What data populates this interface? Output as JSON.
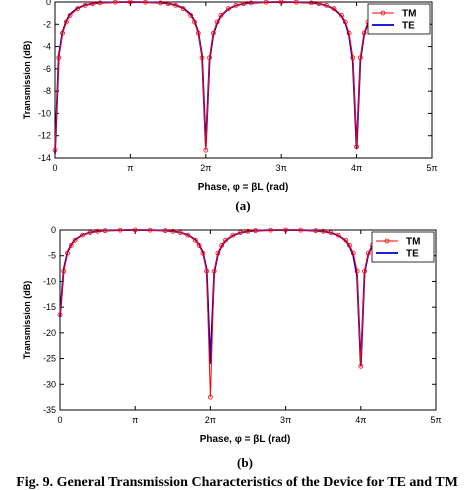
{
  "figure": {
    "caption": "Fig. 9. General Transmission Characteristics of the Device for TE and TM"
  },
  "chart_data": [
    {
      "type": "line",
      "panel_label": "(a)",
      "xlabel": "Phase, φ = βL (rad)",
      "ylabel": "Transmission (dB)",
      "xlim": [
        0,
        5
      ],
      "x_unit": "π",
      "ylim": [
        -14,
        0
      ],
      "x_ticks": [
        0,
        1,
        2,
        3,
        4,
        5
      ],
      "x_tick_labels": [
        "0",
        "π",
        "2π",
        "3π",
        "4π",
        "5π"
      ],
      "y_ticks": [
        0,
        -2,
        -4,
        -6,
        -8,
        -10,
        -12,
        -14
      ],
      "y_tick_labels": [
        "0",
        "-2",
        "-4",
        "-6",
        "-8",
        "-10",
        "-12",
        "-14"
      ],
      "grid": false,
      "legend_position": "top-right",
      "x": [
        0.0,
        0.05,
        0.1,
        0.15,
        0.2,
        0.3,
        0.4,
        0.5,
        0.6,
        0.8,
        1.0,
        1.2,
        1.4,
        1.5,
        1.6,
        1.7,
        1.8,
        1.85,
        1.9,
        1.95,
        2.0,
        2.05,
        2.1,
        2.15,
        2.2,
        2.3,
        2.4,
        2.5,
        2.6,
        2.8,
        3.0,
        3.2,
        3.4,
        3.5,
        3.6,
        3.7,
        3.8,
        3.85,
        3.9,
        3.95,
        4.0,
        4.05,
        4.1,
        4.15,
        4.2,
        4.25,
        4.3
      ],
      "series": [
        {
          "name": "TM",
          "color": "#ff0000",
          "marker": "circle",
          "values": [
            -13.3,
            -5.0,
            -2.8,
            -1.8,
            -1.2,
            -0.6,
            -0.3,
            -0.15,
            -0.08,
            -0.02,
            0.0,
            -0.02,
            -0.08,
            -0.15,
            -0.3,
            -0.6,
            -1.2,
            -1.8,
            -2.8,
            -5.0,
            -13.3,
            -5.0,
            -2.8,
            -1.8,
            -1.2,
            -0.6,
            -0.3,
            -0.15,
            -0.08,
            -0.02,
            0.0,
            -0.02,
            -0.08,
            -0.15,
            -0.3,
            -0.6,
            -1.2,
            -1.8,
            -2.8,
            -5.0,
            -13.0,
            -5.0,
            -2.8,
            -1.8,
            -1.2,
            -0.8,
            -0.6
          ]
        },
        {
          "name": "TE",
          "color": "#0000cc",
          "marker": "none",
          "values": [
            -13.6,
            -4.8,
            -2.7,
            -1.7,
            -1.1,
            -0.55,
            -0.28,
            -0.14,
            -0.07,
            -0.02,
            0.0,
            -0.02,
            -0.07,
            -0.14,
            -0.28,
            -0.55,
            -1.1,
            -1.7,
            -2.7,
            -4.8,
            -13.0,
            -5.2,
            -2.9,
            -1.9,
            -1.25,
            -0.62,
            -0.31,
            -0.15,
            -0.08,
            -0.02,
            0.0,
            -0.02,
            -0.08,
            -0.15,
            -0.31,
            -0.62,
            -1.25,
            -1.9,
            -3.0,
            -5.4,
            -13.2,
            -5.2,
            -2.9,
            -1.9,
            -1.25,
            -0.85,
            -0.62
          ]
        }
      ]
    },
    {
      "type": "line",
      "panel_label": "(b)",
      "xlabel": "Phase, φ = βL (rad)",
      "ylabel": "Transmission (dB)",
      "xlim": [
        0,
        5
      ],
      "x_unit": "π",
      "ylim": [
        -35,
        0
      ],
      "x_ticks": [
        0,
        1,
        2,
        3,
        4,
        5
      ],
      "x_tick_labels": [
        "0",
        "π",
        "2π",
        "3π",
        "4π",
        "5π"
      ],
      "y_ticks": [
        0,
        -5,
        -10,
        -15,
        -20,
        -25,
        -30,
        -35
      ],
      "y_tick_labels": [
        "0",
        "-5",
        "-10",
        "-15",
        "-20",
        "-25",
        "-30",
        "-35"
      ],
      "grid": false,
      "legend_position": "top-right",
      "x": [
        0.0,
        0.05,
        0.1,
        0.15,
        0.2,
        0.3,
        0.4,
        0.5,
        0.6,
        0.8,
        1.0,
        1.2,
        1.4,
        1.5,
        1.6,
        1.7,
        1.8,
        1.85,
        1.9,
        1.95,
        2.0,
        2.05,
        2.1,
        2.15,
        2.2,
        2.3,
        2.4,
        2.5,
        2.6,
        2.8,
        3.0,
        3.2,
        3.4,
        3.5,
        3.6,
        3.7,
        3.8,
        3.85,
        3.9,
        3.95,
        4.0,
        4.05,
        4.1,
        4.15,
        4.2,
        4.25,
        4.3
      ],
      "series": [
        {
          "name": "TM",
          "color": "#ff0000",
          "marker": "circle",
          "values": [
            -16.5,
            -8.0,
            -4.5,
            -3.0,
            -2.0,
            -1.0,
            -0.5,
            -0.25,
            -0.12,
            -0.03,
            0.0,
            -0.03,
            -0.12,
            -0.25,
            -0.5,
            -1.0,
            -2.0,
            -3.0,
            -4.5,
            -8.0,
            -32.5,
            -8.0,
            -4.5,
            -3.0,
            -2.0,
            -1.0,
            -0.5,
            -0.25,
            -0.12,
            -0.03,
            0.0,
            -0.03,
            -0.12,
            -0.25,
            -0.5,
            -1.0,
            -2.0,
            -3.0,
            -4.5,
            -8.0,
            -26.5,
            -8.0,
            -4.5,
            -3.0,
            -2.0,
            -1.5,
            -1.0
          ]
        },
        {
          "name": "TE",
          "color": "#0000cc",
          "marker": "none",
          "values": [
            -16.8,
            -7.6,
            -4.3,
            -2.9,
            -1.9,
            -0.95,
            -0.48,
            -0.24,
            -0.11,
            -0.03,
            0.0,
            -0.03,
            -0.11,
            -0.24,
            -0.48,
            -0.95,
            -1.9,
            -2.9,
            -4.3,
            -7.6,
            -26.0,
            -8.3,
            -4.7,
            -3.1,
            -2.1,
            -1.05,
            -0.52,
            -0.26,
            -0.13,
            -0.03,
            0.0,
            -0.03,
            -0.13,
            -0.26,
            -0.52,
            -1.05,
            -2.1,
            -3.2,
            -5.0,
            -9.0,
            -26.5,
            -8.3,
            -4.7,
            -3.1,
            -2.1,
            -1.55,
            -1.05
          ]
        }
      ]
    }
  ]
}
